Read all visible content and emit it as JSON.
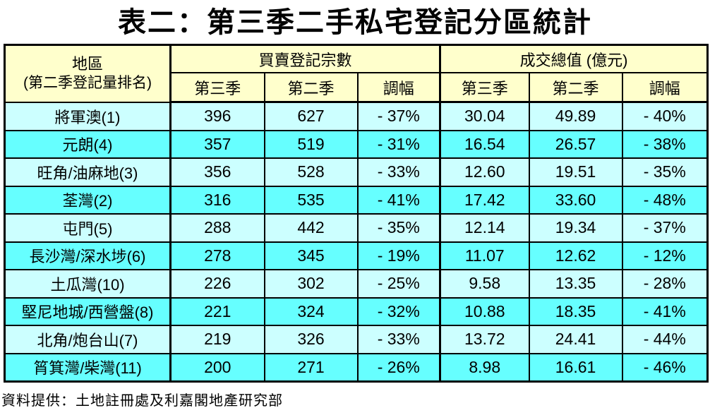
{
  "title": "表二：第三季二手私宅登記分區統計",
  "source_note": "資料提供：土地註冊處及利嘉閣地產研究部",
  "colors": {
    "header_bg": "#FFFFCC",
    "row_alt_light": "#CCFFFF",
    "row_alt_bright": "#66FFFF",
    "border": "#000000",
    "title_color": "#000000",
    "page_bg": "#FFFFFF"
  },
  "table": {
    "header": {
      "district_title": "地區",
      "district_subtitle": "(第二季登記量排名)",
      "group_registrations": "買賣登記宗數",
      "group_value": "成交總值 (億元)",
      "subheaders": [
        "第三季",
        "第二季",
        "調幅"
      ]
    },
    "rows": [
      {
        "district": "將軍澳(1)",
        "reg_q3": "396",
        "reg_q2": "627",
        "reg_change": "- 37%",
        "val_q3": "30.04",
        "val_q2": "49.89",
        "val_change": "- 40%"
      },
      {
        "district": "元朗(4)",
        "reg_q3": "357",
        "reg_q2": "519",
        "reg_change": "- 31%",
        "val_q3": "16.54",
        "val_q2": "26.57",
        "val_change": "- 38%"
      },
      {
        "district": "旺角/油麻地(3)",
        "reg_q3": "356",
        "reg_q2": "528",
        "reg_change": "- 33%",
        "val_q3": "12.60",
        "val_q2": "19.51",
        "val_change": "- 35%"
      },
      {
        "district": "荃灣(2)",
        "reg_q3": "316",
        "reg_q2": "535",
        "reg_change": "- 41%",
        "val_q3": "17.42",
        "val_q2": "33.60",
        "val_change": "- 48%"
      },
      {
        "district": "屯門(5)",
        "reg_q3": "288",
        "reg_q2": "442",
        "reg_change": "- 35%",
        "val_q3": "12.14",
        "val_q2": "19.34",
        "val_change": "- 37%"
      },
      {
        "district": "長沙灣/深水埗(6)",
        "reg_q3": "278",
        "reg_q2": "345",
        "reg_change": "- 19%",
        "val_q3": "11.07",
        "val_q2": "12.62",
        "val_change": "- 12%"
      },
      {
        "district": "土瓜灣(10)",
        "reg_q3": "226",
        "reg_q2": "302",
        "reg_change": "- 25%",
        "val_q3": "9.58",
        "val_q2": "13.35",
        "val_change": "- 28%"
      },
      {
        "district": "堅尼地城/西營盤(8)",
        "reg_q3": "221",
        "reg_q2": "324",
        "reg_change": "- 32%",
        "val_q3": "10.88",
        "val_q2": "18.35",
        "val_change": "- 41%"
      },
      {
        "district": "北角/炮台山(7)",
        "reg_q3": "219",
        "reg_q2": "326",
        "reg_change": "- 33%",
        "val_q3": "13.72",
        "val_q2": "24.41",
        "val_change": "- 44%"
      },
      {
        "district": "筲箕灣/柴灣(11)",
        "reg_q3": "200",
        "reg_q2": "271",
        "reg_change": "- 26%",
        "val_q3": "8.98",
        "val_q2": "16.61",
        "val_change": "- 46%"
      }
    ]
  },
  "chart_data": {
    "type": "table",
    "title": "表二：第三季二手私宅登記分區統計",
    "column_groups": [
      {
        "label": "地區 (第二季登記量排名)",
        "span": 1
      },
      {
        "label": "買賣登記宗數",
        "span": 3
      },
      {
        "label": "成交總值 (億元)",
        "span": 3
      }
    ],
    "columns": [
      "地區(第二季登記量排名)",
      "買賣登記宗數 第三季",
      "買賣登記宗數 第二季",
      "買賣登記宗數 調幅",
      "成交總值(億元) 第三季",
      "成交總值(億元) 第二季",
      "成交總值(億元) 調幅"
    ],
    "rows": [
      [
        "將軍澳(1)",
        396,
        627,
        -37,
        30.04,
        49.89,
        -40
      ],
      [
        "元朗(4)",
        357,
        519,
        -31,
        16.54,
        26.57,
        -38
      ],
      [
        "旺角/油麻地(3)",
        356,
        528,
        -33,
        12.6,
        19.51,
        -35
      ],
      [
        "荃灣(2)",
        316,
        535,
        -41,
        17.42,
        33.6,
        -48
      ],
      [
        "屯門(5)",
        288,
        442,
        -35,
        12.14,
        19.34,
        -37
      ],
      [
        "長沙灣/深水埗(6)",
        278,
        345,
        -19,
        11.07,
        12.62,
        -12
      ],
      [
        "土瓜灣(10)",
        226,
        302,
        -25,
        9.58,
        13.35,
        -28
      ],
      [
        "堅尼地城/西營盤(8)",
        221,
        324,
        -32,
        10.88,
        18.35,
        -41
      ],
      [
        "北角/炮台山(7)",
        219,
        326,
        -33,
        13.72,
        24.41,
        -44
      ],
      [
        "筲箕灣/柴灣(11)",
        200,
        271,
        -26,
        8.98,
        16.61,
        -46
      ]
    ],
    "change_unit": "percent",
    "source": "資料提供：土地註冊處及利嘉閣地產研究部"
  }
}
